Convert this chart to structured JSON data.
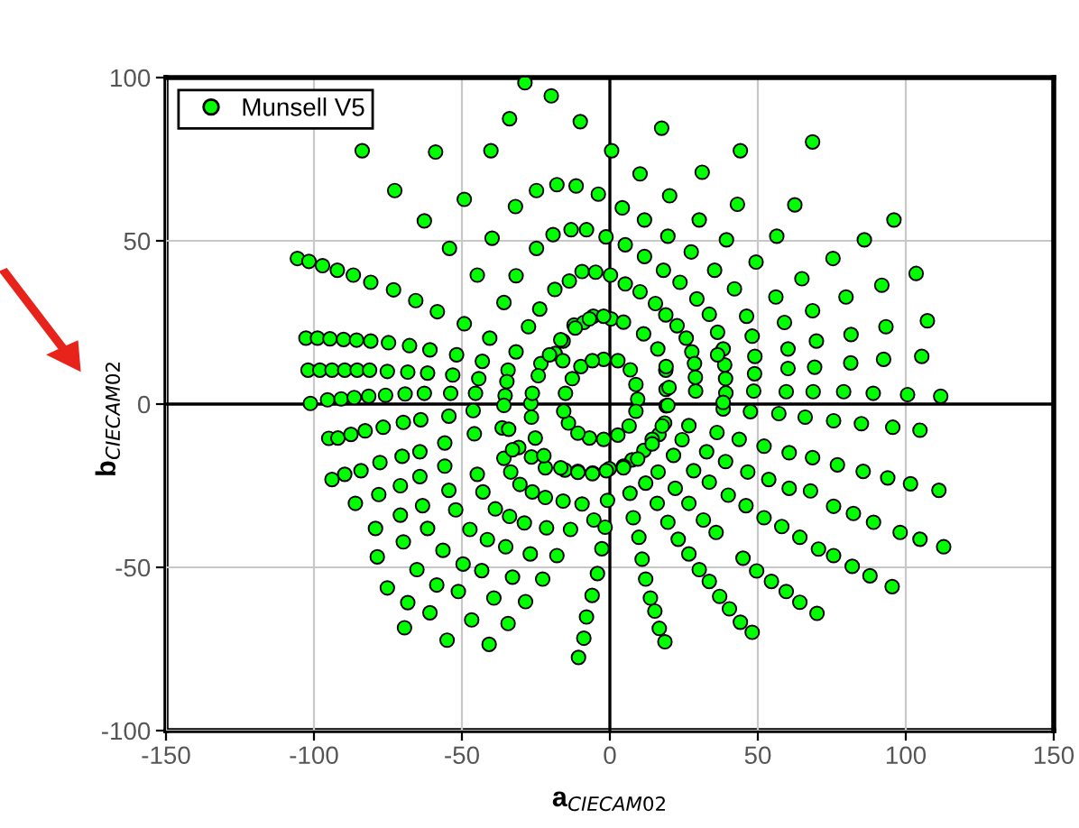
{
  "chart_data": {
    "type": "scatter",
    "xlabel": "a$_{CIECAM02}$",
    "ylabel": "b$_{CIECAM02}$",
    "xlim": [
      -150,
      150
    ],
    "ylim": [
      -100,
      100
    ],
    "xticks": [
      -150,
      -100,
      -50,
      0,
      50,
      100,
      150
    ],
    "yticks": [
      -100,
      -50,
      0,
      50,
      100
    ],
    "grid": true,
    "legend": "top left",
    "marker": "circle",
    "series": [
      {
        "name": "Munsell V5",
        "color": "#00ff00",
        "x": [
          -28.7,
          -19.8,
          -33.9,
          -10,
          -83.7,
          -58.9,
          -40.2,
          0.6,
          -72.7,
          -49.2,
          -31.9,
          -24.8,
          -17.9,
          -11.4,
          -3.9,
          -62.7,
          -54.2,
          -39.8,
          -24.8,
          -19.2,
          -13.1,
          -7.9,
          -1.3,
          -105.6,
          -101.7,
          -97.1,
          -92.1,
          -86.7,
          -80.8,
          -73.1,
          -65.6,
          -58.3,
          -49.2,
          -44.8,
          -31.7,
          -35.8,
          -23.7,
          -18.6,
          -13.7,
          -9.4,
          -4.8,
          0.2,
          -27.5,
          -15.8,
          -12.1,
          -8.8,
          -5.6,
          0.4,
          -40.6,
          -31.7,
          -18.5,
          -102.7,
          -98.8,
          -94.6,
          -90,
          -85.6,
          -80.8,
          -74.8,
          -67.7,
          -60.8,
          -51.8,
          -43.1,
          -102,
          -98,
          -93.9,
          -89.6,
          -85.4,
          -81.2,
          -75.2,
          -68.3,
          -61.6,
          -53.1,
          -44.3,
          -34.4,
          -23.3,
          -15.9,
          -101.2,
          -95.4,
          -90.8,
          -86.4,
          -81.5,
          -75.8,
          -69.2,
          -62.7,
          -53.8,
          -45.4,
          -35.4,
          -26.7,
          17.5,
          44.1,
          68.5,
          10.2,
          31.2,
          4.2,
          20.2,
          11.7,
          30.2,
          43.1,
          62.5,
          96,
          5.2,
          19.6,
          39.4,
          56.4,
          86,
          11.7,
          27.5,
          49.4,
          75.4,
          103.5,
          5.2,
          10.2,
          18.1,
          23.7,
          35.4,
          42.1,
          64.9,
          91.9,
          56.1,
          68.5,
          79.8,
          107.3,
          15.4,
          18.9,
          22.7,
          29.4,
          33.6,
          46.2,
          59,
          93.3,
          81.5,
          25.8,
          36.4,
          48.1,
          69.8,
          60.2,
          38.3,
          27.7,
          49,
          92.5,
          105.4,
          81.4,
          69.2,
          60.2,
          28.6,
          38.8,
          48.9,
          18.9,
          28.9,
          39.1,
          19,
          29,
          39.2,
          48.6,
          59.6,
          68.7,
          79,
          89,
          100.6,
          111.8,
          38.3,
          47.5,
          57.1,
          66,
          75.6,
          85,
          95.6,
          104.8,
          26.7,
          36.2,
          43.7,
          52.1,
          60.6,
          68.5,
          76.9,
          85.6,
          93.9,
          101.6,
          111.2,
          24.4,
          21.5,
          28.3,
          32.7,
          39.1,
          33.6,
          46.6,
          53.7,
          60.6,
          40,
          46,
          52.1,
          58.1,
          64.2,
          70.5,
          75.6,
          81.9,
          87.9,
          95.4,
          67.8,
          75.6,
          82.3,
          89.1,
          98.1,
          104.8,
          112.8,
          16.3,
          12.1,
          22.1,
          26.7,
          16,
          19.6,
          23.1,
          26.7,
          30.2,
          33.6,
          37.1,
          40.4,
          44.1,
          48.1,
          31.6,
          35.9,
          45,
          49.6,
          54.6,
          59.6,
          64.2,
          70,
          6.8,
          7.9,
          9.8,
          10.9,
          12.1,
          13.7,
          15.2,
          16.7,
          18.6,
          11.5,
          7.5,
          4.6,
          -0.2,
          16.6,
          14.3,
          18.5,
          19,
          -93.9,
          -89.6,
          -84.1,
          -77.7,
          -70.2,
          -64.2,
          -55.8,
          -45.8,
          -36.4,
          -95,
          -91.9,
          -87.5,
          -82.7,
          -76.6,
          -69.8,
          -63.9,
          -54.4,
          -46.2,
          -86,
          -78.1,
          -70.8,
          -64.2,
          -55.8,
          -44.8,
          -35.8,
          -33.5,
          -79.2,
          -70.8,
          -63.3,
          -54.4,
          -42.9,
          -52.1,
          -38.7,
          -78.6,
          -69.8,
          -61.6,
          -47.3,
          -33.9,
          -30.4,
          -26.2,
          -28.9,
          -21.4,
          -13.3,
          -5.4,
          -9.4,
          -15.8,
          -21.8,
          -0.8,
          -1.6,
          -2.7,
          -4.2,
          -6,
          -7.9,
          -8.8,
          -10.6,
          -41.4,
          -35.2,
          -26.9,
          -17.9,
          -32.9,
          -22.7,
          -39.2,
          -28.5,
          -34.4,
          -40.8,
          -46.7,
          -49.6,
          -43.3,
          -51.2,
          -55,
          -60.8,
          -58.5,
          -65.2,
          -56.4,
          -68.3,
          -69.4,
          -75.2,
          -21.8,
          -15.2,
          -10.8,
          -5.8,
          -26.5,
          -30.8,
          -2.1,
          2.7,
          6.9,
          8.8,
          9.4,
          8.8,
          6.5,
          2.7,
          -2.1,
          -6.9,
          -10.8,
          -14,
          -15.6,
          -15,
          -12.7,
          -9.8,
          -5.9,
          -2.1,
          4.6,
          11.4,
          16.2,
          19,
          20,
          19.6,
          17.7,
          14.3,
          9.4,
          4.6,
          -1.2,
          -5.9,
          -10.8,
          -16.6,
          -22.3,
          -25.2,
          -26.5,
          -26.2,
          -24.2,
          -20.4,
          -16.6,
          -11.7,
          -6.9,
          -34.8,
          -35.8,
          -34.2,
          -32.9,
          36.4,
          38.3
        ],
        "values": [
          98.4,
          94.4,
          87.4,
          86.5,
          77.6,
          77.2,
          77.6,
          77.6,
          65.4,
          62.7,
          60.5,
          65.4,
          67.2,
          66.8,
          64.3,
          56.1,
          47.7,
          50.8,
          47.7,
          51.9,
          53.4,
          53.4,
          51.2,
          44.6,
          43.7,
          42.4,
          41,
          39.5,
          37.3,
          35,
          31.7,
          28.3,
          24.6,
          39.5,
          39.3,
          31.1,
          29.1,
          35.1,
          37.7,
          40.6,
          40.4,
          39.5,
          23.7,
          19.3,
          24.2,
          25,
          26.9,
          26.1,
          20.2,
          16,
          15.5,
          20.2,
          20.2,
          20,
          19.8,
          19.6,
          19.3,
          18.8,
          17.9,
          16.6,
          15.1,
          13.1,
          10.4,
          10.4,
          10.4,
          10.4,
          10.4,
          10.4,
          10,
          9.8,
          9.5,
          8.9,
          7.8,
          10.4,
          12.4,
          13.3,
          0.2,
          1.3,
          1.6,
          2,
          2.4,
          2.7,
          3.1,
          3.3,
          3.3,
          3.3,
          2.6,
          0.2,
          84.5,
          77.6,
          80.3,
          70.5,
          71,
          60.1,
          63.8,
          56.4,
          56.4,
          61.2,
          61,
          56.4,
          48.8,
          51.4,
          50.3,
          51.4,
          50.3,
          45.2,
          46.6,
          43.5,
          44.6,
          40,
          36.8,
          34.4,
          41,
          37.3,
          41,
          35.3,
          38.4,
          36.4,
          32.8,
          28.6,
          32.8,
          25.5,
          30.8,
          27.3,
          24,
          32.2,
          27.5,
          26.9,
          25,
          23.7,
          21.3,
          20.2,
          22,
          20.8,
          19.3,
          16.9,
          16.9,
          16,
          14.6,
          13.7,
          14.6,
          12.6,
          11.3,
          10.9,
          12.4,
          12,
          9.3,
          10.4,
          8.2,
          7.8,
          4.5,
          4,
          3.4,
          4,
          3.8,
          3.8,
          3.8,
          3.3,
          2.9,
          2.4,
          -1.5,
          -2.3,
          -2.9,
          -4,
          -5.1,
          -6,
          -7.1,
          -8,
          -6.6,
          -8.7,
          -10.8,
          -12.9,
          -14.9,
          -16.4,
          -18.6,
          -20.6,
          -22.6,
          -24.4,
          -26.4,
          -10.9,
          -15.7,
          -20.4,
          -14.6,
          -17.6,
          -23.9,
          -20.8,
          -23.1,
          -25.8,
          -27.9,
          -31.1,
          -34.8,
          -37.5,
          -40.8,
          -44.4,
          -46.4,
          -49.7,
          -52.6,
          -55.9,
          -26.6,
          -31.3,
          -33.5,
          -36.2,
          -39.3,
          -41.4,
          -43.7,
          -20.8,
          -24.2,
          -25.8,
          -30.4,
          -30.4,
          -36.2,
          -41.4,
          -45.9,
          -50.7,
          -54.3,
          -58.9,
          -62.7,
          -66.8,
          -69.9,
          -35.5,
          -39.3,
          -47.2,
          -51.1,
          -54.3,
          -57.4,
          -60.7,
          -64.1,
          -27.3,
          -34.8,
          -40.8,
          -47.5,
          -53.6,
          -59.4,
          -63.4,
          -68.7,
          -72.8,
          -14.2,
          -17.1,
          -19,
          -19.8,
          -9.3,
          -10.8,
          -5.8,
          -0.5,
          -23.1,
          -21.5,
          -20.4,
          -17.9,
          -16,
          -14.6,
          -11.9,
          -9.1,
          -7.3,
          -10.5,
          -10.4,
          -9.3,
          -8.2,
          -7.1,
          -5.6,
          -4.8,
          -3.7,
          -2,
          -30.4,
          -27.7,
          -25,
          -22.2,
          -19,
          -21.5,
          -16.6,
          -20.8,
          -38.1,
          -34,
          -31.1,
          -26.4,
          -26.9,
          -32.4,
          -32.1,
          -46.8,
          -42.2,
          -38.1,
          -38.4,
          -34.4,
          -24.6,
          -26.9,
          -36.4,
          -37.9,
          -38.4,
          -35.5,
          -30.6,
          -29.7,
          -28.6,
          -29.5,
          -37.7,
          -44.3,
          -51.9,
          -58.6,
          -65.2,
          -71.7,
          -77.6,
          -41.5,
          -43.7,
          -45.9,
          -46.4,
          -53,
          -53.6,
          -59.4,
          -60.5,
          -67.2,
          -73.6,
          -66.1,
          -49,
          -51,
          -57.4,
          -72.3,
          -63.9,
          -55.4,
          -50.7,
          -44.8,
          -60.8,
          -68.5,
          -56.3,
          -19.5,
          -20.2,
          -20.6,
          -21.1,
          -16.2,
          -13.3,
          13.7,
          13.3,
          10.5,
          6,
          1.5,
          -2.2,
          -6.7,
          -9.5,
          -10.8,
          -10.4,
          -8.9,
          -5.8,
          -2.2,
          3.3,
          7.8,
          11.5,
          13.3,
          26.9,
          25.1,
          21.5,
          16.9,
          11.5,
          5.1,
          -0.4,
          -6.7,
          -12.2,
          -16.8,
          -19.5,
          -20.4,
          -21.3,
          -20.9,
          -19.5,
          -15.8,
          -10.4,
          -4,
          3.3,
          8.7,
          15.1,
          19.7,
          23.3,
          26.1,
          6.9,
          -0.4,
          -7.7,
          -14,
          15.1,
          0.5
        ]
      }
    ]
  }
}
